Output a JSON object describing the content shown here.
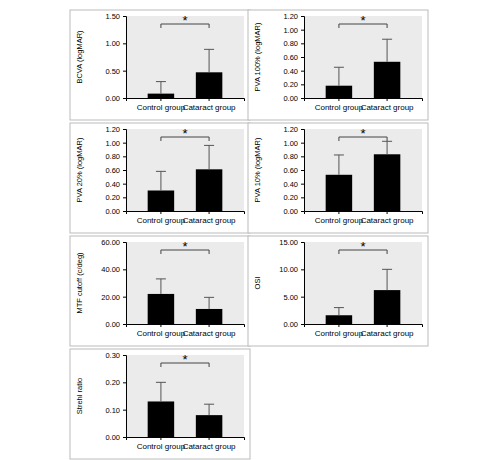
{
  "chart_data": [
    {
      "type": "bar",
      "y_label": "BCVA (logMAR)",
      "categories": [
        "Control group",
        "Cataract group"
      ],
      "values": [
        0.08,
        0.47
      ],
      "errors": [
        0.22,
        0.42
      ],
      "color": "#000000",
      "ylim": [
        0,
        1.5
      ],
      "yticks": [
        {
          "value": 0,
          "label": "0.00"
        },
        {
          "value": 0.5,
          "label": "0.50"
        },
        {
          "value": 1,
          "label": "1.00"
        },
        {
          "value": 1.5,
          "label": "1.50"
        }
      ],
      "annotation": "*"
    },
    {
      "type": "bar",
      "y_label": "PVA 100% (logMAR)",
      "categories": [
        "Control group",
        "Cataract group"
      ],
      "values": [
        0.18,
        0.53
      ],
      "errors": [
        0.27,
        0.33
      ],
      "color": "#000000",
      "ylim": [
        0,
        1.2
      ],
      "yticks": [
        {
          "value": 0,
          "label": "0.00"
        },
        {
          "value": 0.2,
          "label": "0.20"
        },
        {
          "value": 0.4,
          "label": "0.40"
        },
        {
          "value": 0.6,
          "label": "0.60"
        },
        {
          "value": 0.8,
          "label": "0.80"
        },
        {
          "value": 1,
          "label": "1.00"
        },
        {
          "value": 1.2,
          "label": "1.20"
        }
      ],
      "annotation": "*"
    },
    {
      "type": "bar",
      "y_label": "PVA 20% (logMAR)",
      "categories": [
        "Control group",
        "Cataract group"
      ],
      "values": [
        0.3,
        0.61
      ],
      "errors": [
        0.28,
        0.35
      ],
      "color": "#000000",
      "ylim": [
        0,
        1.2
      ],
      "yticks": [
        {
          "value": 0,
          "label": "0.00"
        },
        {
          "value": 0.2,
          "label": "0.20"
        },
        {
          "value": 0.4,
          "label": "0.40"
        },
        {
          "value": 0.6,
          "label": "0.60"
        },
        {
          "value": 0.8,
          "label": "0.80"
        },
        {
          "value": 1,
          "label": "1.00"
        },
        {
          "value": 1.2,
          "label": "1.20"
        }
      ],
      "annotation": "*"
    },
    {
      "type": "bar",
      "y_label": "PVA 10% (logMAR)",
      "categories": [
        "Control group",
        "Cataract group"
      ],
      "values": [
        0.53,
        0.83
      ],
      "errors": [
        0.29,
        0.19
      ],
      "color": "#000000",
      "ylim": [
        0,
        1.2
      ],
      "yticks": [
        {
          "value": 0,
          "label": "0.00"
        },
        {
          "value": 0.2,
          "label": "0.20"
        },
        {
          "value": 0.4,
          "label": "0.40"
        },
        {
          "value": 0.6,
          "label": "0.60"
        },
        {
          "value": 0.8,
          "label": "0.80"
        },
        {
          "value": 1,
          "label": "1.00"
        },
        {
          "value": 1.2,
          "label": "1.20"
        }
      ],
      "annotation": "*"
    },
    {
      "type": "bar",
      "y_label": "MTF cutoff (c/deg)",
      "categories": [
        "Control group",
        "Cataract group"
      ],
      "values": [
        22,
        11
      ],
      "errors": [
        11,
        8.5
      ],
      "color": "#000000",
      "ylim": [
        0,
        60
      ],
      "yticks": [
        {
          "value": 0,
          "label": "0.00"
        },
        {
          "value": 20,
          "label": "20.00"
        },
        {
          "value": 40,
          "label": "40.00"
        },
        {
          "value": 60,
          "label": "60.00"
        }
      ],
      "annotation": "*"
    },
    {
      "type": "bar",
      "y_label": "OSI",
      "categories": [
        "Control group",
        "Cataract group"
      ],
      "values": [
        1.6,
        6.2
      ],
      "errors": [
        1.4,
        3.8
      ],
      "color": "#000000",
      "ylim": [
        0,
        15
      ],
      "yticks": [
        {
          "value": 0,
          "label": "0.00"
        },
        {
          "value": 5,
          "label": "5.00"
        },
        {
          "value": 10,
          "label": "10.00"
        },
        {
          "value": 15,
          "label": "15.00"
        }
      ],
      "annotation": "*"
    },
    {
      "type": "bar",
      "y_label": "Strehl ratio",
      "categories": [
        "Control group",
        "Cataract group"
      ],
      "values": [
        0.13,
        0.08
      ],
      "errors": [
        0.07,
        0.04
      ],
      "color": "#000000",
      "ylim": [
        0,
        0.3
      ],
      "yticks": [
        {
          "value": 0,
          "label": "0.00"
        },
        {
          "value": 0.1,
          "label": "0.10"
        },
        {
          "value": 0.2,
          "label": "0.20"
        },
        {
          "value": 0.3,
          "label": "0.30"
        }
      ],
      "annotation": "*"
    }
  ]
}
